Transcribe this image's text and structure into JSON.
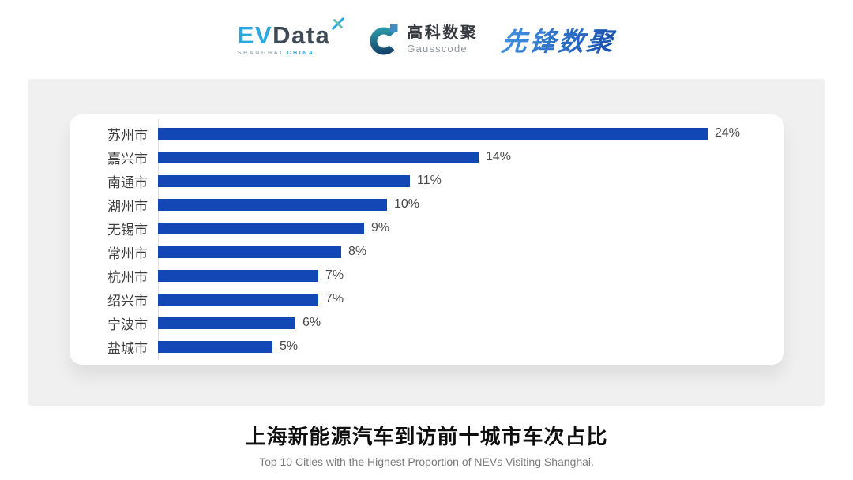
{
  "header": {
    "evdata": {
      "ev": "EV",
      "data": "Data",
      "sub1": "SHANGHAI",
      "sub2": "CHINA"
    },
    "gausscode": {
      "cn": "高科数聚",
      "en": "Gausscode"
    },
    "xianfeng": {
      "text": "先锋数聚"
    }
  },
  "chart_data": {
    "type": "bar",
    "orientation": "horizontal",
    "title": "上海新能源汽车到访前十城市车次占比",
    "subtitle": "Top 10 Cities with the Highest Proportion of  NEVs Visiting Shanghai.",
    "categories": [
      "苏州市",
      "嘉兴市",
      "南通市",
      "湖州市",
      "无锡市",
      "常州市",
      "杭州市",
      "绍兴市",
      "宁波市",
      "盐城市"
    ],
    "values": [
      24,
      14,
      11,
      10,
      9,
      8,
      7,
      7,
      6,
      5
    ],
    "value_suffix": "%",
    "xlim": [
      0,
      24
    ],
    "grid": false,
    "legend": "none",
    "value_label_position": "end-outside",
    "bar_color": "#1347b6"
  },
  "colors": {
    "bar": "#1347b6",
    "panel_bg": "#f0f0f0",
    "card_bg": "#ffffff",
    "axis_line": "#dcdcdc",
    "label_text": "#3d3d3d",
    "value_text": "#4a4a4a",
    "title_text": "#0f0f0f",
    "subtitle_text": "#7b7b7b",
    "evdata_blue": "#2aa9e0",
    "evdata_dark": "#3e4a55",
    "evdata_spark_teal": "#5fc0ae",
    "gauss_navy": "#16416e",
    "gauss_teal": "#2f9fae",
    "gauss_square": "#3e8fc0",
    "gauss_cn_text": "#35393f",
    "gauss_en_text": "#8d949b",
    "pioneer_blue_light": "#3f8fe0",
    "pioneer_blue_dark": "#1c55b0"
  }
}
